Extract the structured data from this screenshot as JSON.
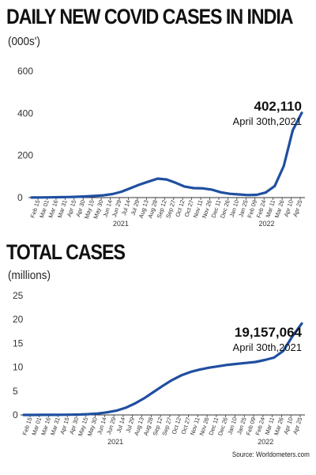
{
  "chart_data": [
    {
      "type": "line",
      "title": "DAILY NEW COVID CASES IN INDIA",
      "unit_label": "(000s')",
      "ylim": [
        0,
        600
      ],
      "yticks": [
        0,
        200,
        400,
        600
      ],
      "grid": false,
      "color": "#1f4fa0",
      "annotation": {
        "value": "402,110",
        "date": "April 30th,2021"
      },
      "year_labels": [
        "2021",
        "2022"
      ],
      "tick_labels": [
        "Feb 15",
        "Mar 01",
        "Mar 16",
        "Mar 31",
        "Apr 15",
        "Apr 30",
        "May 15",
        "May 30",
        "Jun 14",
        "Jun 29",
        "Jul 14",
        "Jul 29",
        "Aug 13",
        "Aug 28",
        "Sep 12",
        "Sep 27",
        "Oct 12",
        "Oct 27",
        "Nov 11",
        "Nov 26",
        "Dec 11",
        "Dec 26",
        "Jan 10",
        "Jan 25",
        "Feb 09",
        "Feb 24",
        "Mar 11",
        "Mar 26",
        "Apr 10",
        "Apr 25"
      ],
      "x": [
        "Feb 15",
        "Mar 01",
        "Mar 16",
        "Mar 31",
        "Apr 15",
        "Apr 30",
        "May 15",
        "May 30",
        "Jun 14",
        "Jun 29",
        "Jul 14",
        "Jul 29",
        "Aug 13",
        "Aug 28",
        "Sep 12",
        "Sep 27",
        "Oct 12",
        "Oct 27",
        "Nov 11",
        "Nov 26",
        "Dec 11",
        "Dec 26",
        "Jan 10",
        "Jan 25",
        "Feb 09",
        "Feb 24",
        "Mar 11",
        "Mar 26",
        "Apr 10",
        "Apr 25",
        "Apr 30"
      ],
      "values": [
        0.5,
        0.8,
        1.2,
        1.8,
        2.5,
        3.8,
        5.5,
        8.0,
        11.0,
        17.0,
        28.0,
        45.0,
        62.0,
        76.0,
        90.0,
        86.0,
        70.0,
        52.0,
        45.0,
        44.0,
        38.0,
        25.0,
        18.0,
        15.0,
        12.0,
        13.0,
        24.0,
        55.0,
        150.0,
        320.0,
        402.0
      ]
    },
    {
      "type": "line",
      "title": "TOTAL CASES",
      "unit_label": "(millions)",
      "ylim": [
        0,
        25
      ],
      "yticks": [
        0,
        5,
        10,
        15,
        20,
        25
      ],
      "grid": false,
      "color": "#1f4fa0",
      "annotation": {
        "value": "19,157,064",
        "date": "April 30th,2021"
      },
      "year_labels": [
        "2021",
        "2022"
      ],
      "tick_labels": [
        "Feb 15",
        "Mar 01",
        "Mar 16",
        "Mar 31",
        "Apr 15",
        "Apr 30",
        "May 15",
        "May 30",
        "Jun 14",
        "Jun 29",
        "Jul 14",
        "Jul 29",
        "Aug 13",
        "Aug 28",
        "Sep 12",
        "Sep 27",
        "Oct 12",
        "Oct 27",
        "Nov 11",
        "Nov 26",
        "Dec 11",
        "Dec 26",
        "Jan 10",
        "Jan 25",
        "Feb 09",
        "Feb 24",
        "Mar 11",
        "Mar 26",
        "Apr 10",
        "Apr 25"
      ],
      "x": [
        "Feb 15",
        "Mar 01",
        "Mar 16",
        "Mar 31",
        "Apr 15",
        "Apr 30",
        "May 15",
        "May 30",
        "Jun 14",
        "Jun 29",
        "Jul 14",
        "Jul 29",
        "Aug 13",
        "Aug 28",
        "Sep 12",
        "Sep 27",
        "Oct 12",
        "Oct 27",
        "Nov 11",
        "Nov 26",
        "Dec 11",
        "Dec 26",
        "Jan 10",
        "Jan 25",
        "Feb 09",
        "Feb 24",
        "Mar 11",
        "Mar 26",
        "Apr 10",
        "Apr 25",
        "Apr 30"
      ],
      "values": [
        0.0,
        0.0,
        0.01,
        0.02,
        0.03,
        0.05,
        0.08,
        0.16,
        0.3,
        0.55,
        0.9,
        1.5,
        2.4,
        3.5,
        4.8,
        6.1,
        7.3,
        8.3,
        9.0,
        9.5,
        9.9,
        10.2,
        10.5,
        10.7,
        10.9,
        11.1,
        11.5,
        12.0,
        13.4,
        16.5,
        19.16
      ]
    }
  ],
  "source": "Source: Worldometers.com"
}
